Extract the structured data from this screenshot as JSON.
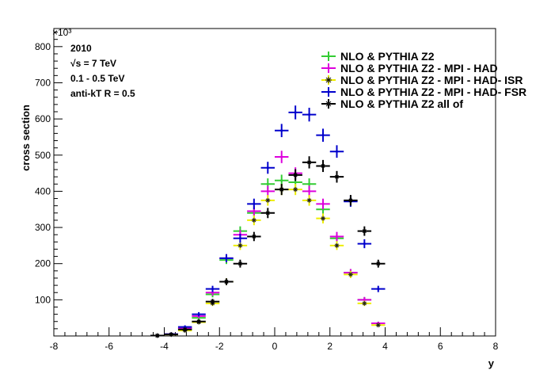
{
  "chart_data": {
    "type": "scatter",
    "xlabel": "y",
    "ylabel": "cross section",
    "xlim": [
      -8,
      8
    ],
    "ylim": [
      0,
      850
    ],
    "x_ticks": [
      "-8",
      "-6",
      "-4",
      "-2",
      "0",
      "2",
      "4",
      "6",
      "8"
    ],
    "y_ticks": [
      "100",
      "200",
      "300",
      "400",
      "500",
      "600",
      "700",
      "800"
    ],
    "y_exponent": "×10³",
    "info": [
      "2010",
      "√s = 7 TeV",
      "0.1 - 0.5 TeV",
      "anti-kT R = 0.5"
    ],
    "legend_position": "top-right",
    "x": [
      -4.25,
      -3.75,
      -3.25,
      -2.75,
      -2.25,
      -1.75,
      -1.25,
      -0.75,
      -0.25,
      0.25,
      0.75,
      1.25,
      1.75,
      2.25,
      2.75,
      3.25,
      3.75
    ],
    "x_halfwidth": 0.25,
    "series": [
      {
        "name": "NLO & PYTHIA Z2",
        "color": "#33cc33",
        "marker": "+",
        "values": [
          1,
          5,
          20,
          50,
          115,
          210,
          290,
          340,
          420,
          430,
          425,
          420,
          350,
          270,
          175,
          100,
          35
        ]
      },
      {
        "name": "NLO & PYTHIA Z2 - MPI - HAD",
        "color": "#dd00dd",
        "marker": "+",
        "values": [
          1,
          5,
          22,
          55,
          120,
          215,
          280,
          345,
          400,
          495,
          450,
          400,
          365,
          275,
          175,
          100,
          35
        ]
      },
      {
        "name": "NLO & PYTHIA Z2 - MPI - HAD- ISR",
        "color": "#eeee00",
        "marker": "*",
        "values": [
          1,
          4,
          15,
          38,
          90,
          150,
          250,
          320,
          375,
          405,
          405,
          375,
          325,
          250,
          170,
          90,
          30
        ]
      },
      {
        "name": "NLO & PYTHIA Z2 - MPI - HAD- FSR",
        "color": "#0000cc",
        "marker": "+",
        "values": [
          1,
          5,
          25,
          60,
          130,
          215,
          270,
          365,
          465,
          568,
          618,
          612,
          555,
          510,
          372,
          255,
          130
        ]
      },
      {
        "name": "NLO & PYTHIA Z2 all of",
        "color": "#000000",
        "marker": "*",
        "values": [
          1,
          4,
          18,
          40,
          95,
          150,
          200,
          275,
          340,
          405,
          445,
          480,
          470,
          440,
          375,
          290,
          200
        ]
      }
    ]
  }
}
